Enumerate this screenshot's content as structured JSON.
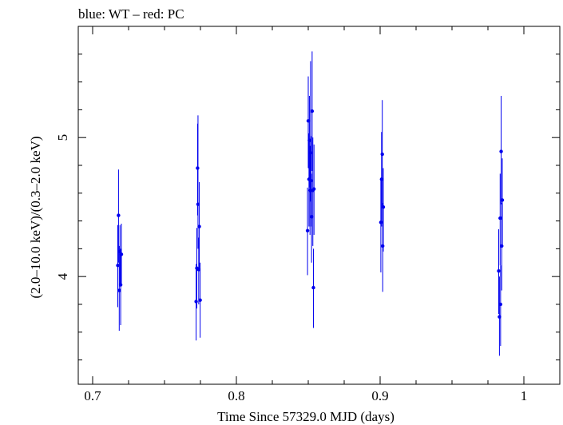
{
  "chart_data": {
    "type": "scatter",
    "title": "blue: WT – red: PC",
    "xlabel": "Time Since 57329.0 MJD (days)",
    "ylabel": "(2.0–10.0 keV)/(0.3–2.0 keV)",
    "xlim": [
      0.69,
      1.025
    ],
    "ylim": [
      3.225,
      5.8
    ],
    "x_ticks": [
      0.7,
      0.8,
      0.9,
      1.0
    ],
    "x_tick_labels": [
      "0.7",
      "0.8",
      "0.9",
      "1"
    ],
    "y_ticks": [
      4,
      5
    ],
    "y_tick_labels": [
      "4",
      "5"
    ],
    "grid": false,
    "series": [
      {
        "color": "#0000ee",
        "points": [
          {
            "x": 0.7175,
            "y": 4.08,
            "lo": 3.78,
            "hi": 4.37
          },
          {
            "x": 0.718,
            "y": 4.44,
            "lo": 4.1,
            "hi": 4.77
          },
          {
            "x": 0.7185,
            "y": 3.9,
            "lo": 3.61,
            "hi": 4.22
          },
          {
            "x": 0.719,
            "y": 4.18,
            "lo": 3.93,
            "hi": 4.37
          },
          {
            "x": 0.7195,
            "y": 3.94,
            "lo": 3.65,
            "hi": 4.2
          },
          {
            "x": 0.72,
            "y": 4.16,
            "lo": 3.94,
            "hi": 4.38
          },
          {
            "x": 0.772,
            "y": 3.82,
            "lo": 3.54,
            "hi": 4.09
          },
          {
            "x": 0.7725,
            "y": 4.06,
            "lo": 3.77,
            "hi": 4.35
          },
          {
            "x": 0.773,
            "y": 4.78,
            "lo": 4.44,
            "hi": 5.1
          },
          {
            "x": 0.7733,
            "y": 4.52,
            "lo": 4.2,
            "hi": 5.16
          },
          {
            "x": 0.7738,
            "y": 4.05,
            "lo": 3.8,
            "hi": 4.28
          },
          {
            "x": 0.7742,
            "y": 4.36,
            "lo": 4.05,
            "hi": 4.68
          },
          {
            "x": 0.7748,
            "y": 3.83,
            "lo": 3.56,
            "hi": 4.1
          },
          {
            "x": 0.8495,
            "y": 4.33,
            "lo": 4.01,
            "hi": 4.64
          },
          {
            "x": 0.85,
            "y": 5.12,
            "lo": 4.78,
            "hi": 5.44
          },
          {
            "x": 0.8505,
            "y": 4.7,
            "lo": 4.36,
            "hi": 5.03
          },
          {
            "x": 0.8508,
            "y": 4.98,
            "lo": 4.64,
            "hi": 5.3
          },
          {
            "x": 0.8512,
            "y": 4.62,
            "lo": 4.3,
            "hi": 4.94
          },
          {
            "x": 0.8516,
            "y": 4.89,
            "lo": 4.54,
            "hi": 5.55
          },
          {
            "x": 0.852,
            "y": 4.69,
            "lo": 4.36,
            "hi": 5.01
          },
          {
            "x": 0.8523,
            "y": 4.43,
            "lo": 4.1,
            "hi": 4.74
          },
          {
            "x": 0.8527,
            "y": 5.19,
            "lo": 4.76,
            "hi": 5.62
          },
          {
            "x": 0.8532,
            "y": 4.62,
            "lo": 4.22,
            "hi": 5.0
          },
          {
            "x": 0.8536,
            "y": 3.92,
            "lo": 3.63,
            "hi": 4.2
          },
          {
            "x": 0.854,
            "y": 4.63,
            "lo": 4.3,
            "hi": 4.95
          },
          {
            "x": 0.9005,
            "y": 4.39,
            "lo": 4.03,
            "hi": 4.71
          },
          {
            "x": 0.901,
            "y": 4.7,
            "lo": 4.36,
            "hi": 5.04
          },
          {
            "x": 0.9015,
            "y": 4.88,
            "lo": 4.5,
            "hi": 5.27
          },
          {
            "x": 0.9018,
            "y": 4.22,
            "lo": 3.89,
            "hi": 4.53
          },
          {
            "x": 0.9022,
            "y": 4.5,
            "lo": 4.18,
            "hi": 4.78
          },
          {
            "x": 0.9825,
            "y": 4.04,
            "lo": 3.73,
            "hi": 4.34
          },
          {
            "x": 0.983,
            "y": 3.71,
            "lo": 3.43,
            "hi": 4.0
          },
          {
            "x": 0.9835,
            "y": 4.42,
            "lo": 4.08,
            "hi": 4.74
          },
          {
            "x": 0.9838,
            "y": 3.8,
            "lo": 3.5,
            "hi": 4.08
          },
          {
            "x": 0.9842,
            "y": 4.9,
            "lo": 4.52,
            "hi": 5.3
          },
          {
            "x": 0.9846,
            "y": 4.22,
            "lo": 3.9,
            "hi": 4.53
          },
          {
            "x": 0.985,
            "y": 4.55,
            "lo": 4.22,
            "hi": 4.85
          }
        ]
      }
    ]
  }
}
